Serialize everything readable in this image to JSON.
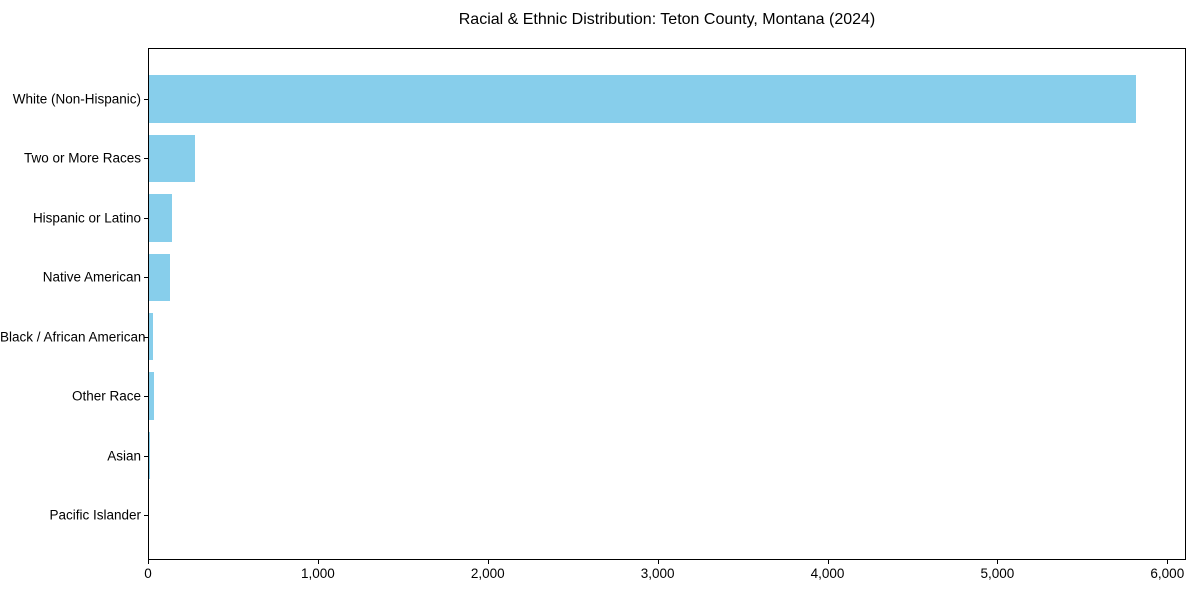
{
  "chart_data": {
    "type": "bar",
    "orientation": "horizontal",
    "title": "Racial & Ethnic Distribution: Teton County, Montana (2024)",
    "categories": [
      "White (Non-Hispanic)",
      "Two or More Races",
      "Hispanic or Latino",
      "Native American",
      "Black / African American",
      "Other Race",
      "Asian",
      "Pacific Islander"
    ],
    "values": [
      5810,
      270,
      135,
      125,
      25,
      30,
      5,
      0
    ],
    "xlabel": "",
    "ylabel": "",
    "xlim": [
      0,
      6110
    ],
    "x_ticks": [
      0,
      1000,
      2000,
      3000,
      4000,
      5000,
      6000
    ],
    "x_tick_labels": [
      "0",
      "1,000",
      "2,000",
      "3,000",
      "4,000",
      "5,000",
      "6,000"
    ],
    "bar_color": "#87CEEB",
    "axis_color": "#000000",
    "text_color": "#000000",
    "background_color": "#ffffff",
    "grid": false,
    "legend": null
  }
}
